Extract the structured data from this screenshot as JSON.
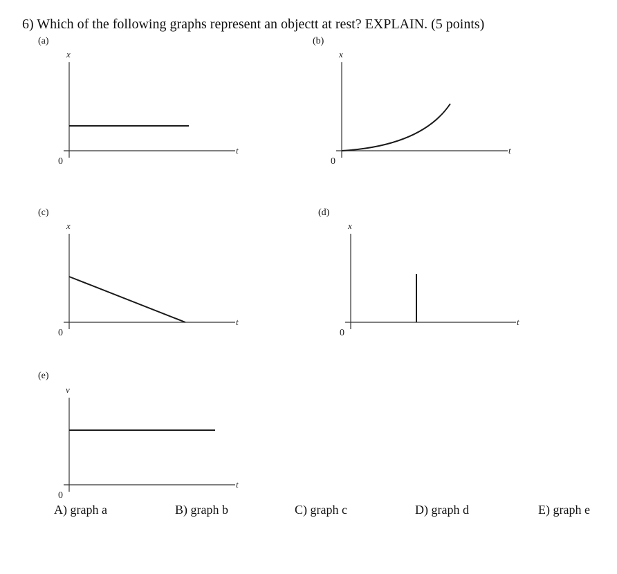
{
  "question": "6) Which of the following graphs represent an objectt at rest? EXPLAIN. (5 points)",
  "graphs": [
    {
      "label": "(a)",
      "yaxis": "x",
      "xaxis": "t",
      "origin": "0"
    },
    {
      "label": "(b)",
      "yaxis": "x",
      "xaxis": "t",
      "origin": "0"
    },
    {
      "label": "(c)",
      "yaxis": "x",
      "xaxis": "t",
      "origin": "0"
    },
    {
      "label": "(d)",
      "yaxis": "x",
      "xaxis": "t",
      "origin": "0"
    },
    {
      "label": "(e)",
      "yaxis": "v",
      "xaxis": "t",
      "origin": "0"
    }
  ],
  "choices": [
    "A) graph a",
    "B) graph b",
    "C) graph c",
    "D) graph d",
    "E) graph e"
  ]
}
